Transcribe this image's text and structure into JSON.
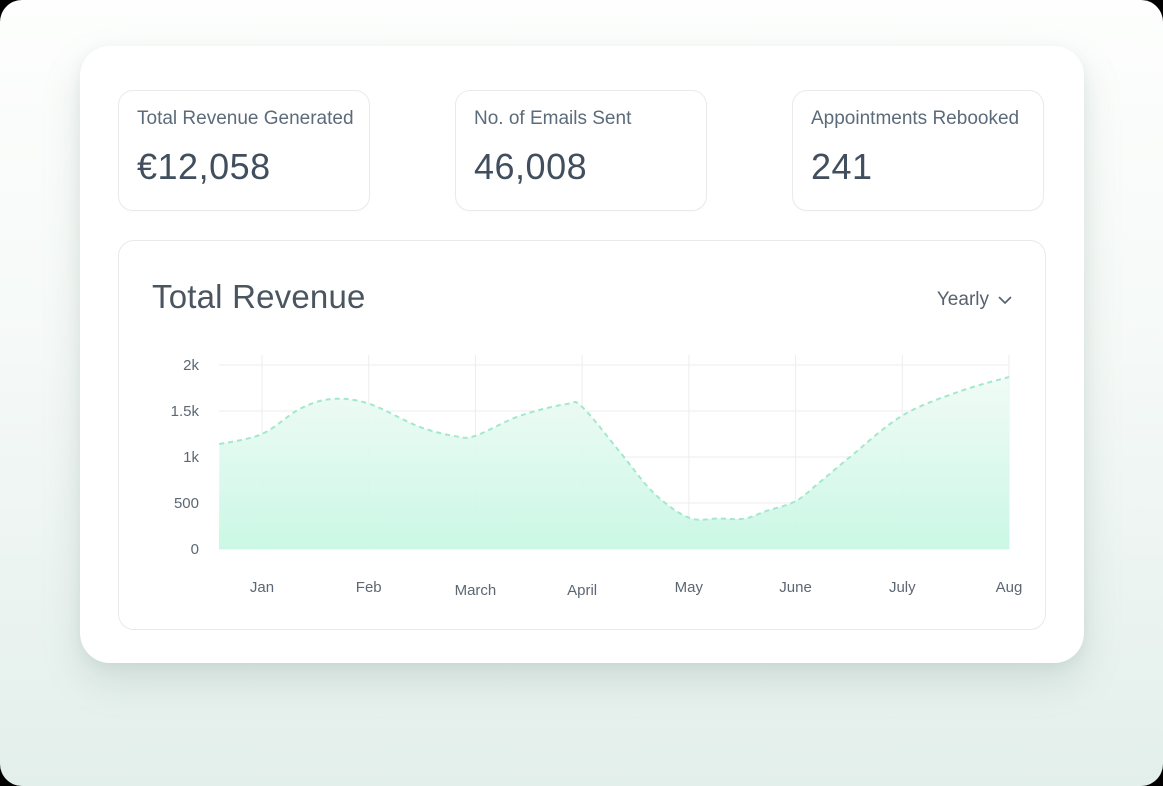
{
  "stats": [
    {
      "label": "Total Revenue Generated",
      "value": "€12,058"
    },
    {
      "label": "No. of Emails Sent",
      "value": "46,008"
    },
    {
      "label": "Appointments Rebooked",
      "value": "241"
    }
  ],
  "chart": {
    "title": "Total Revenue",
    "period_selector": {
      "value": "Yearly",
      "icon": "chevron-down-icon"
    }
  },
  "chart_data": {
    "type": "area",
    "title": "Total Revenue",
    "categories": [
      "Jan",
      "Feb",
      "March",
      "April",
      "May",
      "June",
      "July",
      "Aug"
    ],
    "values": [
      1250,
      1580,
      1230,
      1545,
      340,
      520,
      1450,
      1870
    ],
    "xlabel": "",
    "ylabel": "",
    "ylim": [
      0,
      2000
    ],
    "yticks": [
      {
        "value": 0,
        "label": "0"
      },
      {
        "value": 500,
        "label": "500"
      },
      {
        "value": 1000,
        "label": "1k"
      },
      {
        "value": 1500,
        "label": "1.5k"
      },
      {
        "value": 2000,
        "label": "2k"
      }
    ],
    "grid": true,
    "legend": "none",
    "line_style": "dashed",
    "line_color": "#a3e8cc",
    "fill_gradient_top": "#f2fbf7",
    "fill_gradient_bottom": "#c7f7e3",
    "grid_color": "#ededed",
    "curve_points_month_value": [
      [
        -0.4,
        1140
      ],
      [
        0.0,
        1250
      ],
      [
        0.35,
        1520
      ],
      [
        0.65,
        1630
      ],
      [
        1.0,
        1580
      ],
      [
        1.47,
        1330
      ],
      [
        1.82,
        1225
      ],
      [
        2.0,
        1230
      ],
      [
        2.41,
        1445
      ],
      [
        2.85,
        1575
      ],
      [
        3.0,
        1545
      ],
      [
        3.35,
        1060
      ],
      [
        3.67,
        610
      ],
      [
        4.0,
        340
      ],
      [
        4.28,
        332
      ],
      [
        4.52,
        330
      ],
      [
        4.73,
        415
      ],
      [
        5.0,
        520
      ],
      [
        5.22,
        720
      ],
      [
        5.5,
        990
      ],
      [
        6.0,
        1450
      ],
      [
        6.53,
        1710
      ],
      [
        7.0,
        1870
      ]
    ]
  }
}
